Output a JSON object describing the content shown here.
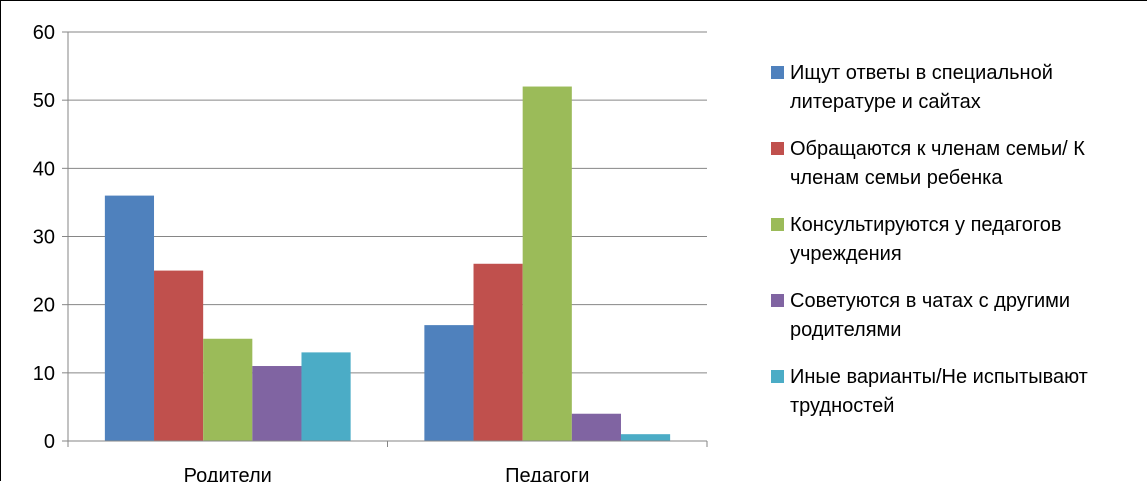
{
  "chart_data": {
    "type": "bar",
    "categories": [
      "Родители",
      "Педагоги"
    ],
    "series": [
      {
        "name": "Ищут ответы в специальной литературе и сайтах",
        "color": "#4F81BD",
        "values": [
          36,
          17
        ]
      },
      {
        "name": "Обращаются к членам семьи/ К членам семьи ребенка",
        "color": "#C0504D",
        "values": [
          25,
          26
        ]
      },
      {
        "name": "Консультируются  у педагогов учреждения",
        "color": "#9BBB59",
        "values": [
          15,
          52
        ]
      },
      {
        "name": "Советуются в чатах с другими родителями",
        "color": "#8064A2",
        "values": [
          11,
          4
        ]
      },
      {
        "name": "Иные варианты/Не испытывают трудностей",
        "color": "#4BACC6",
        "values": [
          13,
          1
        ]
      }
    ],
    "ylim": [
      0,
      60
    ],
    "yticks": [
      0,
      10,
      20,
      30,
      40,
      50,
      60
    ],
    "grid": true,
    "legend_position": "right"
  }
}
